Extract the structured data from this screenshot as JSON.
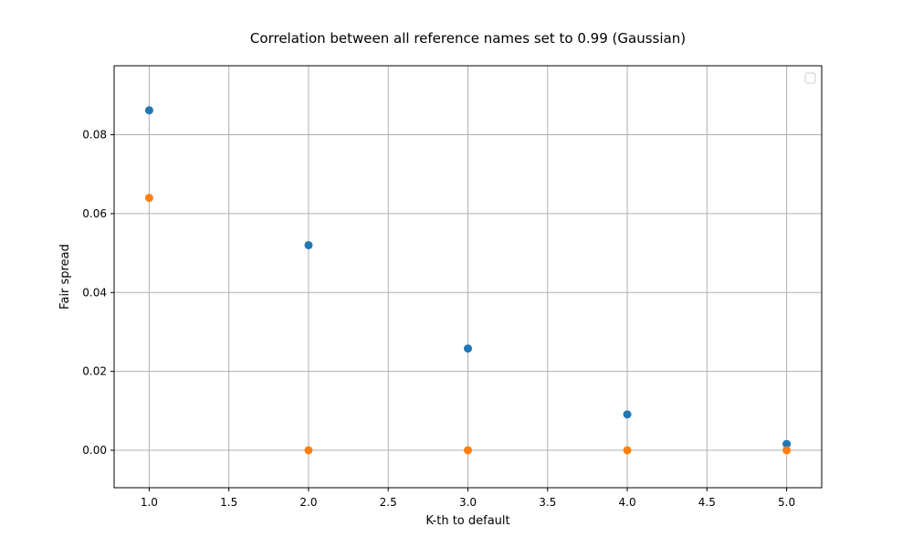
{
  "chart_data": {
    "type": "scatter",
    "title": "Correlation between all reference names set to 0.99 (Gaussian)",
    "xlabel": "K-th to default",
    "ylabel": "Fair spread",
    "xlim": [
      0.78,
      5.22
    ],
    "ylim": [
      -0.0095,
      0.0975
    ],
    "xticks": [
      1.0,
      1.5,
      2.0,
      2.5,
      3.0,
      3.5,
      4.0,
      4.5,
      5.0
    ],
    "xtick_labels": [
      "1.0",
      "1.5",
      "2.0",
      "2.5",
      "3.0",
      "3.5",
      "4.0",
      "4.5",
      "5.0"
    ],
    "yticks": [
      0.0,
      0.02,
      0.04,
      0.06,
      0.08
    ],
    "ytick_labels": [
      "0.00",
      "0.02",
      "0.04",
      "0.06",
      "0.08"
    ],
    "grid": true,
    "legend": {
      "placement": "top-right",
      "entries": []
    },
    "series": [
      {
        "color": "#1f77b4",
        "x": [
          1,
          2,
          3,
          4,
          5
        ],
        "y": [
          0.0862,
          0.052,
          0.0258,
          0.0091,
          0.0016
        ]
      },
      {
        "color": "#ff7f0e",
        "x": [
          1,
          2,
          3,
          4,
          5
        ],
        "y": [
          0.064,
          0.0,
          0.0,
          0.0,
          0.0
        ]
      }
    ]
  }
}
